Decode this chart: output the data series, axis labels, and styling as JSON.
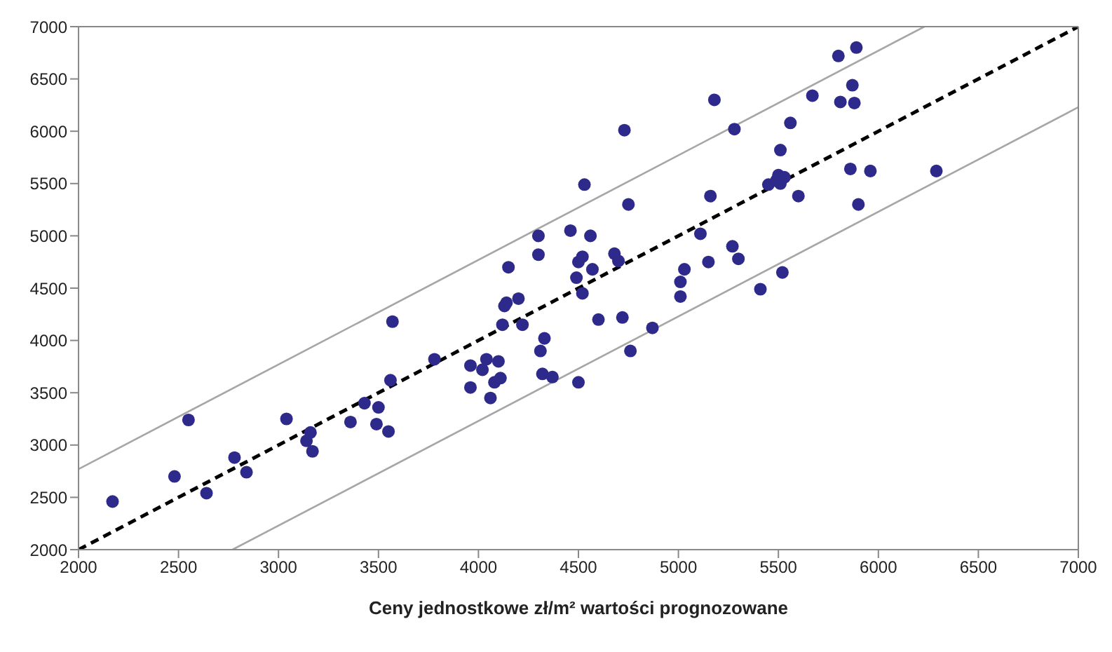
{
  "chart_data": {
    "type": "scatter",
    "xlabel": "Ceny jednostkowe zł/m² wartości prognozowane",
    "xlim": [
      2000,
      7000
    ],
    "ylim": [
      2000,
      7000
    ],
    "xticks": [
      2000,
      2500,
      3000,
      3500,
      4000,
      4500,
      5000,
      5500,
      6000,
      6500,
      7000
    ],
    "yticks": [
      2000,
      2500,
      3000,
      3500,
      4000,
      4500,
      5000,
      5500,
      6000,
      6500,
      7000
    ],
    "series": [
      {
        "color": "#2e2a8c",
        "marker": "circle",
        "x": [
          2170,
          2480,
          2550,
          2640,
          2780,
          2840,
          3040,
          3140,
          3160,
          3170,
          3360,
          3430,
          3490,
          3500,
          3550,
          3560,
          3570,
          3780,
          3960,
          3960,
          4020,
          4040,
          4060,
          4080,
          4100,
          4110,
          4120,
          4130,
          4140,
          4150,
          4200,
          4220,
          4300,
          4300,
          4310,
          4320,
          4330,
          4370,
          4460,
          4490,
          4500,
          4500,
          4520,
          4520,
          4530,
          4560,
          4570,
          4600,
          4680,
          4700,
          4720,
          4730,
          4750,
          4760,
          4870,
          5010,
          5010,
          5030,
          5110,
          5150,
          5160,
          5180,
          5270,
          5280,
          5300,
          5410,
          5450,
          5490,
          5500,
          5510,
          5510,
          5520,
          5530,
          5560,
          5600,
          5670,
          5800,
          5810,
          5860,
          5870,
          5880,
          5890,
          5900,
          5960,
          6290
        ],
        "values": [
          2460,
          2700,
          3240,
          2540,
          2880,
          2740,
          3250,
          3040,
          3120,
          2940,
          3220,
          3400,
          3200,
          3360,
          3130,
          3620,
          4180,
          3820,
          3550,
          3760,
          3720,
          3820,
          3450,
          3600,
          3800,
          3640,
          4150,
          4330,
          4360,
          4700,
          4400,
          4150,
          4820,
          5000,
          3900,
          3680,
          4020,
          3650,
          5050,
          4600,
          4750,
          3600,
          4800,
          4450,
          5490,
          5000,
          4680,
          4200,
          4830,
          4760,
          4220,
          6010,
          5300,
          3900,
          4120,
          4560,
          4420,
          4680,
          5020,
          4750,
          5380,
          6300,
          4900,
          6020,
          4780,
          4490,
          5490,
          5530,
          5580,
          5500,
          5820,
          4650,
          5560,
          6080,
          5380,
          6340,
          6720,
          6280,
          5640,
          6440,
          6270,
          6800,
          5300,
          5620,
          5620
        ]
      },
      {
        "type": "line",
        "color": "#000000",
        "line_style": "dashed",
        "marker": "none",
        "x": [
          2000,
          7000
        ],
        "values": [
          2000,
          7000
        ]
      },
      {
        "type": "line",
        "color": "#a6a6a6",
        "line_style": "solid",
        "marker": "none",
        "x": [
          2000,
          6230
        ],
        "values": [
          2770,
          7000
        ]
      },
      {
        "type": "line",
        "color": "#a6a6a6",
        "line_style": "solid",
        "marker": "none",
        "x": [
          2770,
          7000
        ],
        "values": [
          2000,
          6230
        ]
      }
    ]
  }
}
